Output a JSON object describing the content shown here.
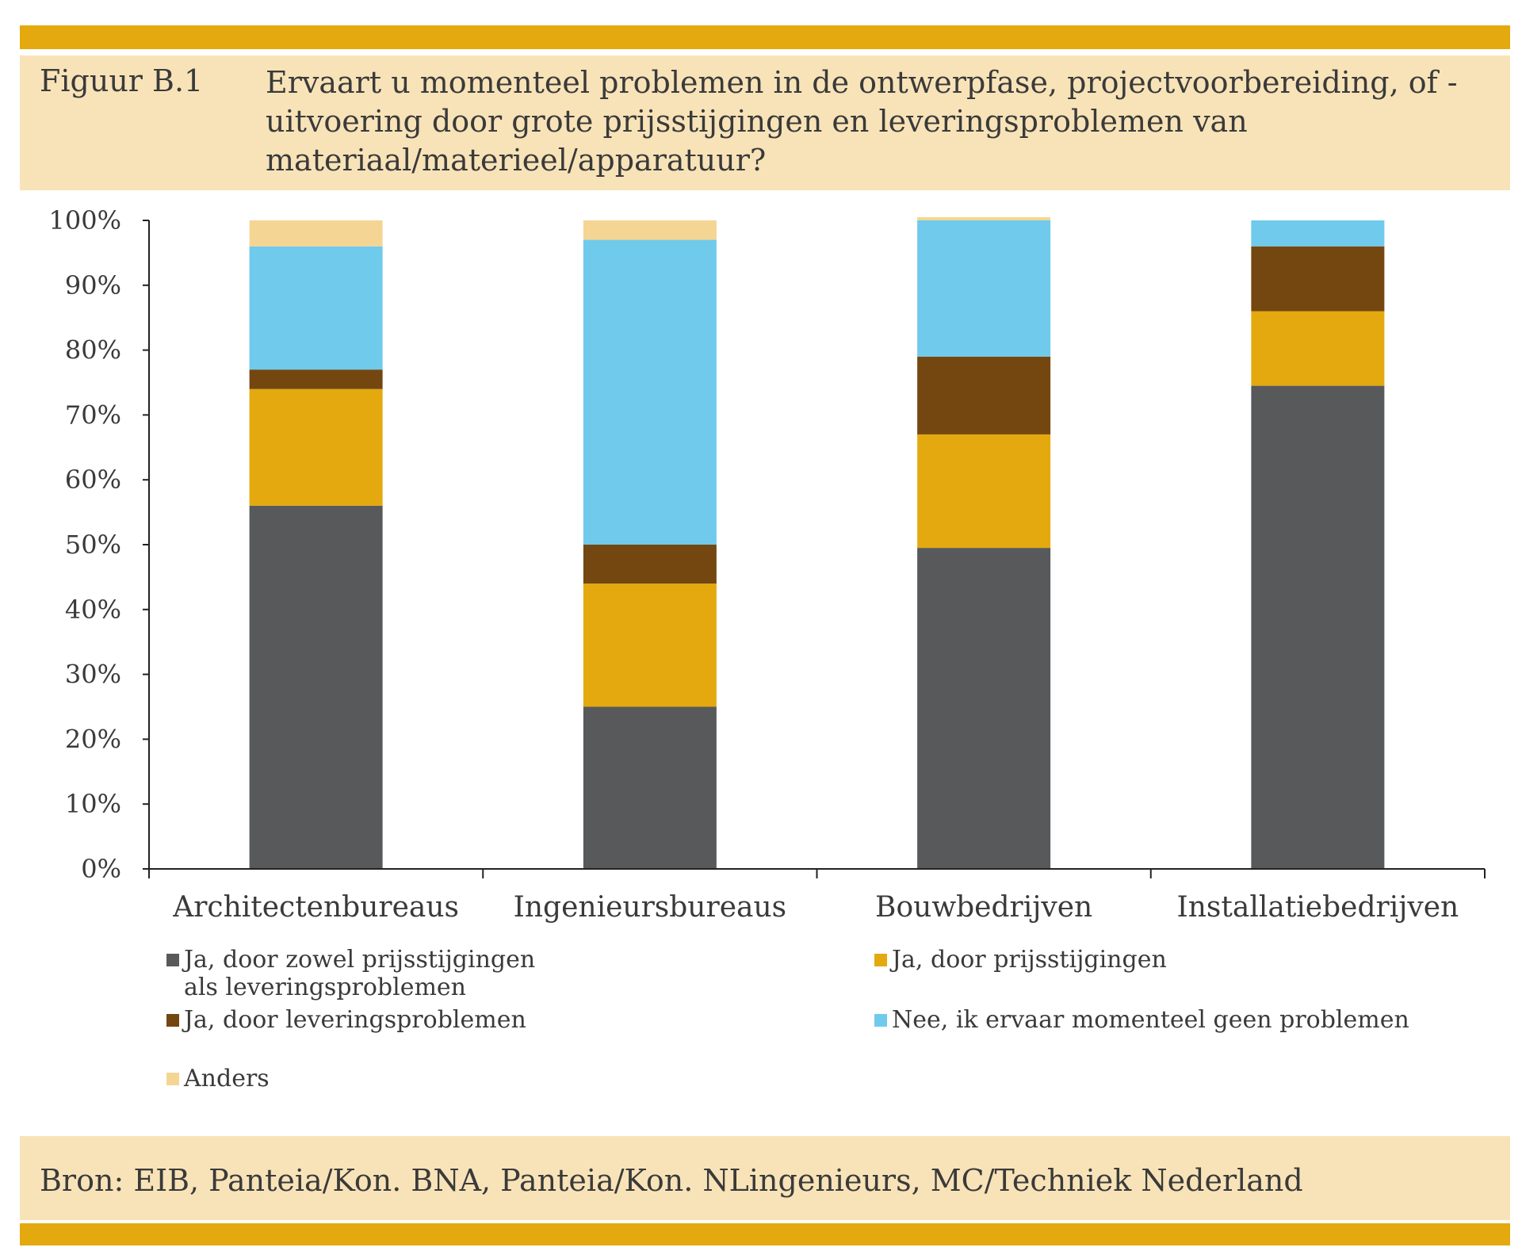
{
  "header": {
    "figure_label": "Figuur B.1",
    "title": "Ervaart u momenteel problemen in de ontwerpfase, projectvoorbereiding, of -uitvoering door grote prijsstijgingen en leveringsproblemen van materiaal/materieel/apparatuur?"
  },
  "footer": {
    "source": "Bron: EIB, Panteia/Kon. BNA, Panteia/Kon. NLingenieurs, MC/Techniek Nederland"
  },
  "colors": {
    "accent": "#E3A90E",
    "panel": "#F8E3B8"
  },
  "chart_data": {
    "type": "bar",
    "stacked": true,
    "categories": [
      "Architectenbureaus",
      "Ingenieursbureaus",
      "Bouwbedrijven",
      "Installatiebedrijven"
    ],
    "ylim": [
      0,
      100
    ],
    "yticks": [
      "0%",
      "10%",
      "20%",
      "30%",
      "40%",
      "50%",
      "60%",
      "70%",
      "80%",
      "90%",
      "100%"
    ],
    "legend_position": "bottom",
    "series": [
      {
        "name": "Ja, door zowel prijsstijgingen als leveringsproblemen",
        "color": "#58595B",
        "values": [
          56,
          25,
          49.5,
          74.5
        ]
      },
      {
        "name": "Ja, door prijsstijgingen",
        "color": "#E3A90E",
        "values": [
          18,
          19,
          17.5,
          11.5
        ]
      },
      {
        "name": "Ja, door leveringsproblemen",
        "color": "#744711",
        "values": [
          3,
          6,
          12,
          10
        ]
      },
      {
        "name": "Nee, ik ervaar momenteel geen problemen",
        "color": "#6FCAEC",
        "values": [
          19,
          47,
          21,
          4
        ]
      },
      {
        "name": "Anders",
        "color": "#F5D593",
        "values": [
          4,
          3,
          0.5,
          0
        ]
      }
    ]
  },
  "legend": [
    {
      "line1": "Ja, door zowel prijsstijgingen",
      "line2": "als leveringsproblemen"
    },
    {
      "line1": "Ja, door prijsstijgingen",
      "line2": ""
    },
    {
      "line1": "Ja, door leveringsproblemen",
      "line2": ""
    },
    {
      "line1": "Nee, ik ervaar momenteel geen problemen",
      "line2": ""
    },
    {
      "line1": "Anders",
      "line2": ""
    }
  ]
}
